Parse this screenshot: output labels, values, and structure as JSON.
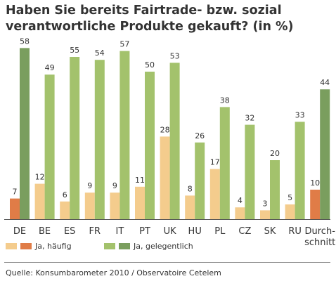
{
  "title": {
    "line1": "Haben Sie bereits Fairtrade- bzw. sozial",
    "line2": "verantwortliche Produkte gekauft? (in %)"
  },
  "colors": {
    "haeufig_light": "#f4cc8d",
    "haeufig_avg": "#e07c47",
    "gelegentlich_light": "#a3c26c",
    "gelegentlich_strong": "#7a9e5e",
    "axis": "#555555"
  },
  "chart_data": {
    "type": "bar",
    "categories": [
      "DE",
      "BE",
      "ES",
      "FR",
      "IT",
      "PT",
      "UK",
      "HU",
      "PL",
      "CZ",
      "SK",
      "RU",
      "Durch-\nschnitt"
    ],
    "series": [
      {
        "name": "Ja, häufig",
        "values": [
          7,
          12,
          6,
          9,
          9,
          11,
          28,
          8,
          17,
          4,
          3,
          5,
          10
        ]
      },
      {
        "name": "Ja, gelegentlich",
        "values": [
          58,
          49,
          55,
          54,
          57,
          50,
          53,
          26,
          38,
          32,
          20,
          33,
          44
        ]
      }
    ],
    "ylim": [
      0,
      60
    ],
    "grid": false,
    "legend": [
      {
        "label": "Ja, häufig",
        "color_key": "haeufig_light"
      },
      {
        "label": "Ja, häufig",
        "color_key": "haeufig_avg"
      },
      {
        "label": "Ja, gelegentlich",
        "color_key": "gelegentlich_light"
      },
      {
        "label": "Ja, gelegentlich",
        "color_key": "gelegentlich_strong"
      }
    ],
    "legend_placement": "bottom-left"
  },
  "source": "Quelle: Konsumbarometer 2010 / Observatoire Cetelem"
}
